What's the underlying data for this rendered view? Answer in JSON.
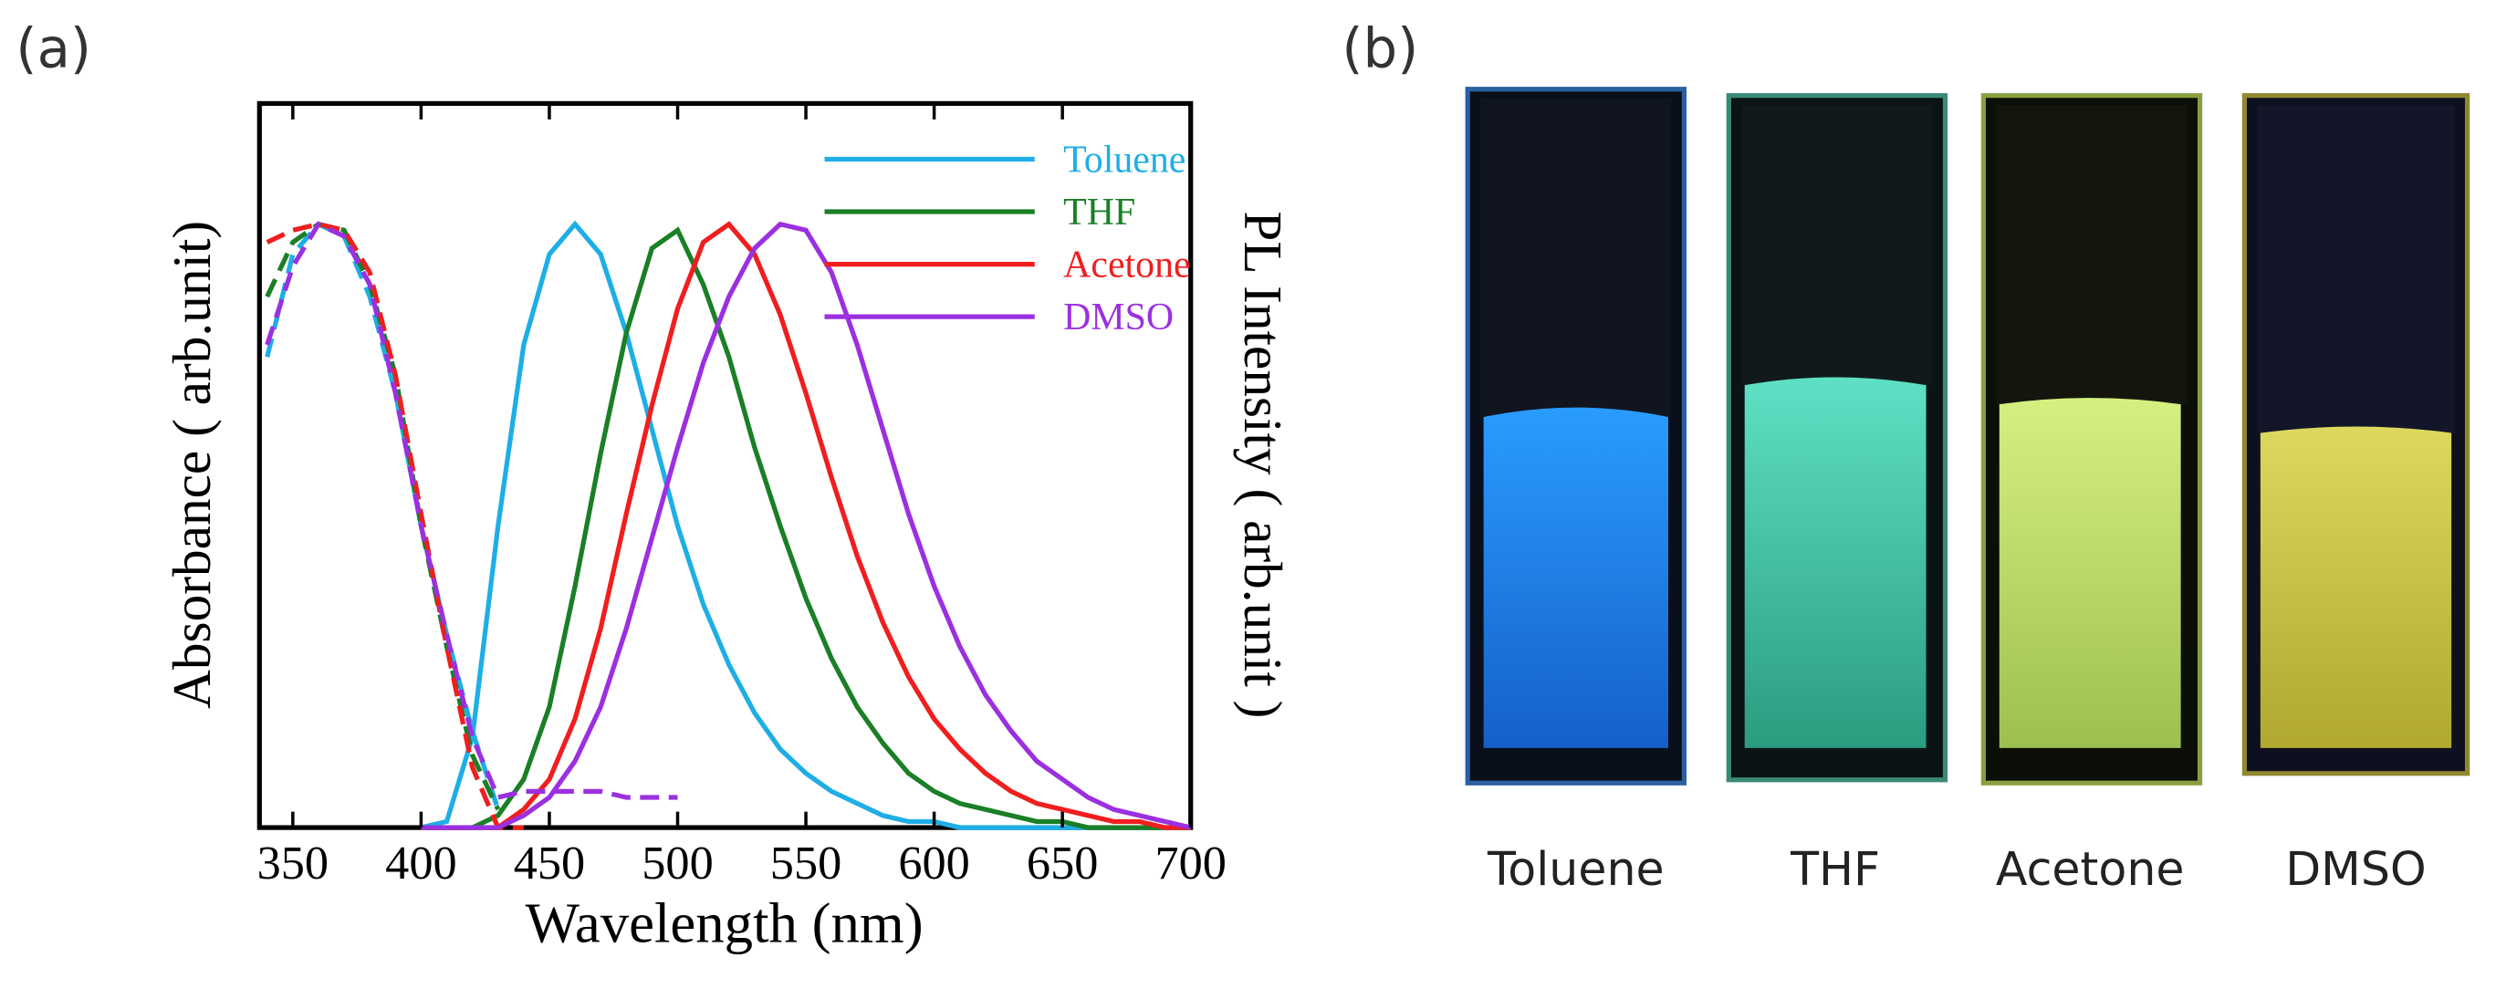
{
  "panel_a_label": "(a)",
  "panel_b_label": "(b)",
  "chart_data": {
    "type": "line",
    "x_label": "Wavelength (nm)",
    "y_label": "Absorbance ( arb.unit)",
    "y2_label": "PL Intensity ( arb.unit )",
    "xlim": [
      337,
      700
    ],
    "ylim": [
      0,
      1.2
    ],
    "xticks": [
      350,
      400,
      450,
      500,
      550,
      600,
      650,
      700
    ],
    "x": [
      340,
      350,
      360,
      370,
      380,
      390,
      400,
      410,
      420,
      430,
      440,
      450,
      460,
      470,
      480,
      490,
      500,
      510,
      520,
      530,
      540,
      550,
      560,
      570,
      580,
      590,
      600,
      610,
      620,
      630,
      640,
      650,
      660,
      670,
      680,
      690,
      700
    ],
    "series": [
      {
        "name": "Toluene",
        "color": "#1eaee6",
        "absorbance": [
          0.78,
          0.95,
          1.0,
          0.98,
          0.88,
          0.72,
          0.5,
          0.32,
          0.16,
          0.03,
          null,
          null,
          null,
          null,
          null,
          null,
          null,
          null,
          null,
          null,
          null,
          null,
          null,
          null,
          null,
          null,
          null,
          null,
          null,
          null,
          null,
          null,
          null,
          null,
          null,
          null,
          null
        ],
        "pl": [
          null,
          null,
          null,
          null,
          null,
          null,
          0,
          0.01,
          0.15,
          0.5,
          0.8,
          0.95,
          1,
          0.95,
          0.82,
          0.66,
          0.5,
          0.37,
          0.27,
          0.19,
          0.13,
          0.09,
          0.06,
          0.04,
          0.02,
          0.01,
          0.01,
          0,
          0,
          0,
          0,
          0,
          0,
          0,
          0,
          0,
          0
        ]
      },
      {
        "name": "THF",
        "color": "#1a7f26",
        "absorbance": [
          0.88,
          0.97,
          1.0,
          0.99,
          0.9,
          0.75,
          0.5,
          0.3,
          0.12,
          0.03,
          null,
          null,
          null,
          null,
          null,
          null,
          null,
          null,
          null,
          null,
          null,
          null,
          null,
          null,
          null,
          null,
          null,
          null,
          null,
          null,
          null,
          null,
          null,
          null,
          null,
          null,
          null
        ],
        "pl": [
          null,
          null,
          null,
          null,
          null,
          null,
          0,
          0,
          0,
          0.02,
          0.08,
          0.2,
          0.4,
          0.62,
          0.82,
          0.96,
          0.99,
          0.9,
          0.78,
          0.63,
          0.5,
          0.38,
          0.28,
          0.2,
          0.14,
          0.09,
          0.06,
          0.04,
          0.03,
          0.02,
          0.01,
          0.01,
          0,
          0,
          0,
          0,
          0
        ]
      },
      {
        "name": "Acetone",
        "color": "#f01e1e",
        "absorbance": [
          0.97,
          0.99,
          1.0,
          0.99,
          0.92,
          0.75,
          0.52,
          0.3,
          0.1,
          0.0,
          0.0,
          null,
          null,
          null,
          null,
          null,
          null,
          null,
          null,
          null,
          null,
          null,
          null,
          null,
          null,
          null,
          null,
          null,
          null,
          null,
          null,
          null,
          null,
          null,
          null,
          null,
          null
        ],
        "pl": [
          null,
          null,
          null,
          null,
          null,
          null,
          0,
          0,
          0,
          0,
          0.03,
          0.08,
          0.18,
          0.33,
          0.52,
          0.7,
          0.86,
          0.97,
          1,
          0.95,
          0.85,
          0.72,
          0.58,
          0.45,
          0.34,
          0.25,
          0.18,
          0.13,
          0.09,
          0.06,
          0.04,
          0.03,
          0.02,
          0.01,
          0.01,
          0,
          0
        ]
      },
      {
        "name": "DMSO",
        "color": "#9b30e0",
        "absorbance": [
          0.8,
          0.93,
          1.0,
          0.98,
          0.9,
          0.72,
          0.5,
          0.32,
          0.15,
          0.05,
          0.06,
          0.06,
          0.06,
          0.06,
          0.05,
          0.05,
          0.05,
          null,
          null,
          null,
          null,
          null,
          null,
          null,
          null,
          null,
          null,
          null,
          null,
          null,
          null,
          null,
          null,
          null,
          null,
          null,
          null
        ],
        "pl": [
          null,
          null,
          null,
          null,
          null,
          null,
          0,
          0,
          0,
          0,
          0.02,
          0.05,
          0.11,
          0.2,
          0.33,
          0.48,
          0.63,
          0.77,
          0.88,
          0.96,
          1,
          0.99,
          0.92,
          0.8,
          0.66,
          0.52,
          0.4,
          0.3,
          0.22,
          0.16,
          0.11,
          0.08,
          0.05,
          0.03,
          0.02,
          0.01,
          0
        ]
      }
    ]
  },
  "photos": {
    "labels": [
      "Toluene",
      "THF",
      "Acetone",
      "DMSO"
    ]
  }
}
